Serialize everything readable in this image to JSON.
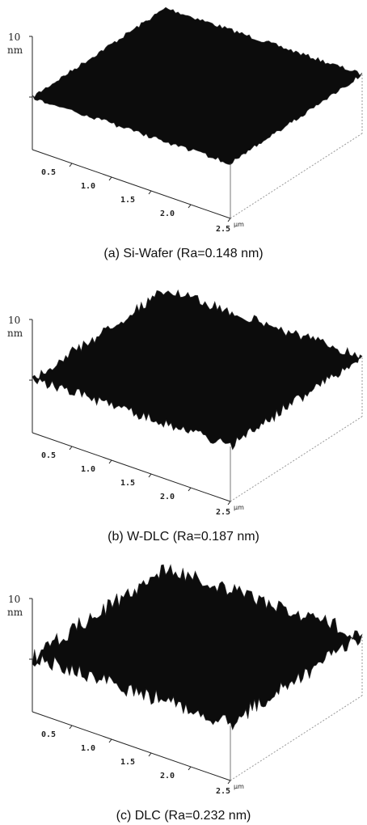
{
  "panels": [
    {
      "z_label": "10",
      "z_unit": "nm",
      "x_ticks": [
        "0.5",
        "1.0",
        "1.5",
        "2.0",
        "2.5"
      ],
      "x_unit": "µm",
      "caption": "(a) Si-Wafer (Ra=0.148 nm)"
    },
    {
      "z_label": "10",
      "z_unit": "nm",
      "x_ticks": [
        "0.5",
        "1.0",
        "1.5",
        "2.0",
        "2.5"
      ],
      "x_unit": "µm",
      "caption": "(b) W-DLC (Ra=0.187 nm)"
    },
    {
      "z_label": "10",
      "z_unit": "nm",
      "x_ticks": [
        "0.5",
        "1.0",
        "1.5",
        "2.0",
        "2.5"
      ],
      "x_unit": "µm",
      "caption": "(c) DLC (Ra=0.232 nm)"
    }
  ]
}
